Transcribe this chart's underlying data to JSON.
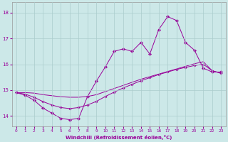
{
  "xlabel": "Windchill (Refroidissement éolien,°C)",
  "background_color": "#cce8e8",
  "line_color": "#990099",
  "grid_color": "#aacccc",
  "xlim": [
    -0.5,
    23.5
  ],
  "ylim": [
    13.6,
    18.4
  ],
  "yticks": [
    14,
    15,
    16,
    17,
    18
  ],
  "xticks": [
    0,
    1,
    2,
    3,
    4,
    5,
    6,
    7,
    8,
    9,
    10,
    11,
    12,
    13,
    14,
    15,
    16,
    17,
    18,
    19,
    20,
    21,
    22,
    23
  ],
  "hours": [
    0,
    1,
    2,
    3,
    4,
    5,
    6,
    7,
    8,
    9,
    10,
    11,
    12,
    13,
    14,
    15,
    16,
    17,
    18,
    19,
    20,
    21,
    22,
    23
  ],
  "temp_main": [
    14.9,
    14.8,
    14.6,
    14.3,
    14.1,
    13.9,
    13.85,
    13.9,
    14.75,
    15.35,
    15.9,
    16.5,
    16.6,
    16.5,
    16.85,
    16.4,
    17.35,
    17.85,
    17.7,
    16.85,
    16.55,
    15.85,
    15.7,
    15.7
  ],
  "line2_y": [
    14.9,
    14.84,
    14.72,
    14.55,
    14.42,
    14.32,
    14.28,
    14.32,
    14.42,
    14.56,
    14.75,
    14.92,
    15.08,
    15.22,
    15.36,
    15.48,
    15.6,
    15.7,
    15.8,
    15.88,
    15.95,
    16.0,
    15.75,
    15.65
  ],
  "line3_y": [
    14.9,
    14.9,
    14.88,
    14.82,
    14.78,
    14.74,
    14.72,
    14.72,
    14.75,
    14.82,
    14.94,
    15.06,
    15.18,
    15.3,
    15.42,
    15.52,
    15.62,
    15.72,
    15.82,
    15.92,
    16.02,
    16.1,
    15.75,
    15.65
  ]
}
